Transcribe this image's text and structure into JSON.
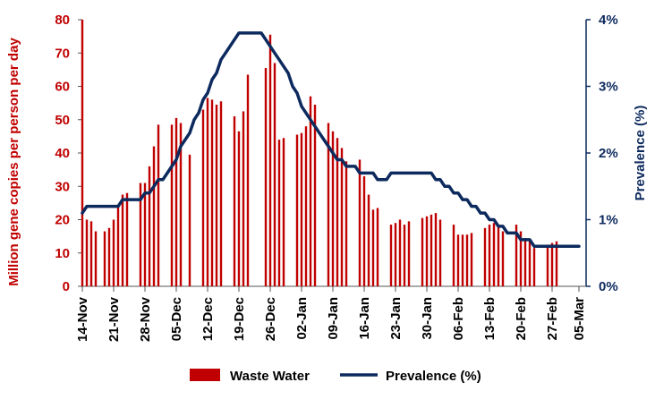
{
  "chart_data": {
    "type": "bar+line",
    "title": "",
    "x_tick_labels": [
      "14-Nov",
      "21-Nov",
      "28-Nov",
      "05-Dec",
      "12-Dec",
      "19-Dec",
      "26-Dec",
      "02-Jan",
      "09-Jan",
      "16-Jan",
      "23-Jan",
      "30-Jan",
      "06-Feb",
      "13-Feb",
      "20-Feb",
      "27-Feb",
      "05-Mar"
    ],
    "x_start_date": "14-Nov",
    "y_left": {
      "label": "Million gene copies per person per day",
      "min": 0,
      "max": 80,
      "ticks": [
        0,
        10,
        20,
        30,
        40,
        50,
        60,
        70,
        80
      ],
      "color": "#c00000"
    },
    "y_right": {
      "label": "Prevalence (%)",
      "min": 0,
      "max": 4,
      "ticks": [
        "0%",
        "1%",
        "2%",
        "3%",
        "4%"
      ],
      "color": "#0d2a5e"
    },
    "legend": {
      "position": "bottom",
      "entries": [
        {
          "label": "Waste Water",
          "color": "#c00000"
        },
        {
          "label": "Prevalence (%)",
          "color": "#0d2a5e"
        }
      ]
    },
    "series": [
      {
        "name": "Waste Water",
        "type": "bar",
        "color": "#c00000",
        "data": [
          [
            "14-Nov",
            80
          ],
          [
            "15-Nov",
            20
          ],
          [
            "16-Nov",
            19.5
          ],
          [
            "17-Nov",
            16.5
          ],
          [
            "19-Nov",
            16.5
          ],
          [
            "20-Nov",
            17.5
          ],
          [
            "21-Nov",
            20
          ],
          [
            "22-Nov",
            24
          ],
          [
            "23-Nov",
            27.5
          ],
          [
            "24-Nov",
            28
          ],
          [
            "27-Nov",
            31
          ],
          [
            "28-Nov",
            31
          ],
          [
            "29-Nov",
            36
          ],
          [
            "30-Nov",
            42
          ],
          [
            "01-Dec",
            48.5
          ],
          [
            "04-Dec",
            48.5
          ],
          [
            "05-Dec",
            50.5
          ],
          [
            "06-Dec",
            49
          ],
          [
            "08-Dec",
            39.5
          ],
          [
            "11-Dec",
            53
          ],
          [
            "12-Dec",
            56.5
          ],
          [
            "13-Dec",
            56
          ],
          [
            "14-Dec",
            54.5
          ],
          [
            "15-Dec",
            55.5
          ],
          [
            "18-Dec",
            51
          ],
          [
            "19-Dec",
            46.5
          ],
          [
            "20-Dec",
            52.5
          ],
          [
            "21-Dec",
            63.5
          ],
          [
            "25-Dec",
            65.5
          ],
          [
            "26-Dec",
            75.5
          ],
          [
            "27-Dec",
            67
          ],
          [
            "28-Dec",
            44
          ],
          [
            "29-Dec",
            44.5
          ],
          [
            "01-Jan",
            45.5
          ],
          [
            "02-Jan",
            46
          ],
          [
            "03-Jan",
            48
          ],
          [
            "04-Jan",
            57
          ],
          [
            "05-Jan",
            54.5
          ],
          [
            "08-Jan",
            49
          ],
          [
            "09-Jan",
            46.5
          ],
          [
            "10-Jan",
            44.5
          ],
          [
            "11-Jan",
            41.5
          ],
          [
            "12-Jan",
            37.5
          ],
          [
            "15-Jan",
            38
          ],
          [
            "16-Jan",
            33
          ],
          [
            "17-Jan",
            27.5
          ],
          [
            "18-Jan",
            23
          ],
          [
            "19-Jan",
            23.5
          ],
          [
            "22-Jan",
            18.5
          ],
          [
            "23-Jan",
            19
          ],
          [
            "24-Jan",
            20
          ],
          [
            "25-Jan",
            18.5
          ],
          [
            "26-Jan",
            19.5
          ],
          [
            "29-Jan",
            20.5
          ],
          [
            "30-Jan",
            21
          ],
          [
            "31-Jan",
            21.5
          ],
          [
            "01-Feb",
            22
          ],
          [
            "02-Feb",
            20
          ],
          [
            "05-Feb",
            18.5
          ],
          [
            "06-Feb",
            15.5
          ],
          [
            "07-Feb",
            15.5
          ],
          [
            "08-Feb",
            15.5
          ],
          [
            "09-Feb",
            16
          ],
          [
            "12-Feb",
            17.5
          ],
          [
            "13-Feb",
            18.5
          ],
          [
            "14-Feb",
            19
          ],
          [
            "15-Feb",
            18
          ],
          [
            "16-Feb",
            16.5
          ],
          [
            "19-Feb",
            18.5
          ],
          [
            "20-Feb",
            16.5
          ],
          [
            "21-Feb",
            14.5
          ],
          [
            "22-Feb",
            14
          ],
          [
            "23-Feb",
            11.5
          ],
          [
            "26-Feb",
            12.5
          ],
          [
            "27-Feb",
            13
          ],
          [
            "28-Feb",
            13.5
          ]
        ]
      },
      {
        "name": "Prevalence (%)",
        "type": "line",
        "color": "#0d2a5e",
        "data": [
          [
            "14-Nov",
            1.1
          ],
          [
            "15-Nov",
            1.2
          ],
          [
            "16-Nov",
            1.2
          ],
          [
            "22-Nov",
            1.2
          ],
          [
            "23-Nov",
            1.3
          ],
          [
            "27-Nov",
            1.3
          ],
          [
            "28-Nov",
            1.4
          ],
          [
            "29-Nov",
            1.4
          ],
          [
            "30-Nov",
            1.5
          ],
          [
            "01-Dec",
            1.6
          ],
          [
            "02-Dec",
            1.6
          ],
          [
            "03-Dec",
            1.7
          ],
          [
            "04-Dec",
            1.8
          ],
          [
            "05-Dec",
            1.9
          ],
          [
            "06-Dec",
            2.1
          ],
          [
            "07-Dec",
            2.2
          ],
          [
            "08-Dec",
            2.3
          ],
          [
            "09-Dec",
            2.5
          ],
          [
            "10-Dec",
            2.6
          ],
          [
            "11-Dec",
            2.8
          ],
          [
            "12-Dec",
            2.9
          ],
          [
            "13-Dec",
            3.1
          ],
          [
            "14-Dec",
            3.2
          ],
          [
            "15-Dec",
            3.4
          ],
          [
            "16-Dec",
            3.5
          ],
          [
            "17-Dec",
            3.6
          ],
          [
            "18-Dec",
            3.7
          ],
          [
            "19-Dec",
            3.8
          ],
          [
            "24-Dec",
            3.8
          ],
          [
            "25-Dec",
            3.7
          ],
          [
            "26-Dec",
            3.6
          ],
          [
            "27-Dec",
            3.5
          ],
          [
            "28-Dec",
            3.4
          ],
          [
            "29-Dec",
            3.3
          ],
          [
            "30-Dec",
            3.2
          ],
          [
            "31-Dec",
            3.0
          ],
          [
            "01-Jan",
            2.9
          ],
          [
            "02-Jan",
            2.7
          ],
          [
            "03-Jan",
            2.6
          ],
          [
            "04-Jan",
            2.5
          ],
          [
            "05-Jan",
            2.4
          ],
          [
            "06-Jan",
            2.3
          ],
          [
            "07-Jan",
            2.2
          ],
          [
            "08-Jan",
            2.1
          ],
          [
            "09-Jan",
            2.0
          ],
          [
            "10-Jan",
            1.9
          ],
          [
            "11-Jan",
            1.9
          ],
          [
            "12-Jan",
            1.8
          ],
          [
            "13-Jan",
            1.8
          ],
          [
            "14-Jan",
            1.8
          ],
          [
            "15-Jan",
            1.7
          ],
          [
            "18-Jan",
            1.7
          ],
          [
            "19-Jan",
            1.6
          ],
          [
            "21-Jan",
            1.6
          ],
          [
            "22-Jan",
            1.7
          ],
          [
            "31-Jan",
            1.7
          ],
          [
            "01-Feb",
            1.6
          ],
          [
            "02-Feb",
            1.6
          ],
          [
            "03-Feb",
            1.5
          ],
          [
            "04-Feb",
            1.5
          ],
          [
            "05-Feb",
            1.4
          ],
          [
            "06-Feb",
            1.4
          ],
          [
            "07-Feb",
            1.3
          ],
          [
            "08-Feb",
            1.3
          ],
          [
            "09-Feb",
            1.2
          ],
          [
            "10-Feb",
            1.2
          ],
          [
            "11-Feb",
            1.1
          ],
          [
            "12-Feb",
            1.1
          ],
          [
            "13-Feb",
            1.0
          ],
          [
            "14-Feb",
            1.0
          ],
          [
            "15-Feb",
            0.9
          ],
          [
            "16-Feb",
            0.9
          ],
          [
            "17-Feb",
            0.8
          ],
          [
            "18-Feb",
            0.8
          ],
          [
            "19-Feb",
            0.8
          ],
          [
            "20-Feb",
            0.7
          ],
          [
            "22-Feb",
            0.7
          ],
          [
            "23-Feb",
            0.6
          ],
          [
            "05-Mar",
            0.6
          ]
        ]
      }
    ]
  }
}
